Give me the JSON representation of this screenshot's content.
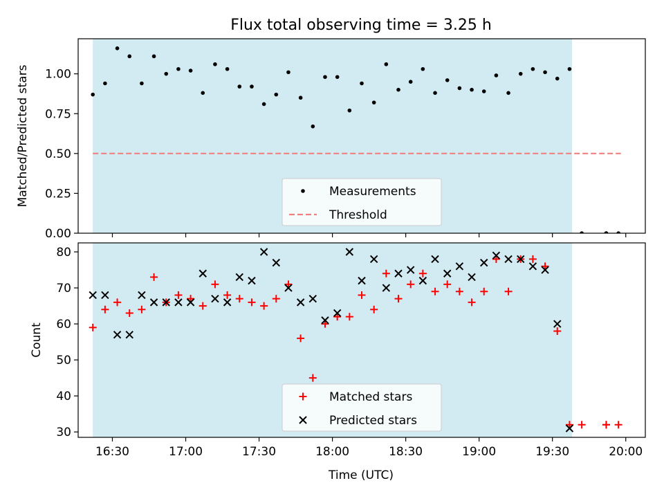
{
  "chart_data": [
    {
      "type": "scatter",
      "title": "Flux total observing time = 3.25 h",
      "xlabel": "",
      "ylabel": "Matched/Predicted stars",
      "ylim": [
        0,
        1.22
      ],
      "xlim": [
        "16:16",
        "20:08"
      ],
      "yticks": [
        "0.00",
        "0.25",
        "0.50",
        "0.75",
        "1.00"
      ],
      "yticks_values": [
        0,
        0.25,
        0.5,
        0.75,
        1.0
      ],
      "legend_position": "lower-center",
      "observing_window": {
        "start": "16:22",
        "end": "19:38",
        "color": "#add8e6"
      },
      "threshold": {
        "name": "Threshold",
        "value": 0.5,
        "x_start": "16:22",
        "x_end": "19:58",
        "color": "#f08080"
      },
      "series": [
        {
          "name": "Measurements",
          "color": "#000000",
          "points": [
            [
              "16:22",
              0.87
            ],
            [
              "16:27",
              0.94
            ],
            [
              "16:32",
              1.16
            ],
            [
              "16:37",
              1.11
            ],
            [
              "16:42",
              0.94
            ],
            [
              "16:47",
              1.11
            ],
            [
              "16:52",
              1.0
            ],
            [
              "16:57",
              1.03
            ],
            [
              "17:02",
              1.02
            ],
            [
              "17:07",
              0.88
            ],
            [
              "17:12",
              1.06
            ],
            [
              "17:17",
              1.03
            ],
            [
              "17:22",
              0.92
            ],
            [
              "17:27",
              0.92
            ],
            [
              "17:32",
              0.81
            ],
            [
              "17:37",
              0.87
            ],
            [
              "17:42",
              1.01
            ],
            [
              "17:47",
              0.85
            ],
            [
              "17:52",
              0.67
            ],
            [
              "17:57",
              0.98
            ],
            [
              "18:02",
              0.98
            ],
            [
              "18:07",
              0.77
            ],
            [
              "18:12",
              0.94
            ],
            [
              "18:17",
              0.82
            ],
            [
              "18:22",
              1.06
            ],
            [
              "18:27",
              0.9
            ],
            [
              "18:32",
              0.95
            ],
            [
              "18:37",
              1.03
            ],
            [
              "18:42",
              0.88
            ],
            [
              "18:47",
              0.96
            ],
            [
              "18:52",
              0.91
            ],
            [
              "18:57",
              0.9
            ],
            [
              "19:02",
              0.89
            ],
            [
              "19:07",
              0.99
            ],
            [
              "19:12",
              0.88
            ],
            [
              "19:17",
              1.0
            ],
            [
              "19:22",
              1.03
            ],
            [
              "19:27",
              1.01
            ],
            [
              "19:32",
              0.97
            ],
            [
              "19:37",
              1.03
            ],
            [
              "19:42",
              0.0
            ],
            [
              "19:52",
              0.0
            ],
            [
              "19:52",
              0.0
            ],
            [
              "19:57",
              0.0
            ]
          ]
        }
      ]
    },
    {
      "type": "scatter",
      "title": "",
      "xlabel": "Time (UTC)",
      "ylabel": "Count",
      "ylim": [
        28.5,
        82.5
      ],
      "xlim": [
        "16:16",
        "20:08"
      ],
      "yticks": [
        "30",
        "40",
        "50",
        "60",
        "70",
        "80"
      ],
      "yticks_values": [
        30,
        40,
        50,
        60,
        70,
        80
      ],
      "xticks": [
        "16:30",
        "17:00",
        "17:30",
        "18:00",
        "18:30",
        "19:00",
        "19:30",
        "20:00"
      ],
      "legend_position": "lower-center",
      "observing_window": {
        "start": "16:22",
        "end": "19:38",
        "color": "#add8e6"
      },
      "series": [
        {
          "name": "Matched stars",
          "color": "#ff0000",
          "marker": "plus",
          "points": [
            [
              "16:22",
              59
            ],
            [
              "16:27",
              64
            ],
            [
              "16:32",
              66
            ],
            [
              "16:37",
              63
            ],
            [
              "16:42",
              64
            ],
            [
              "16:47",
              73
            ],
            [
              "16:52",
              66
            ],
            [
              "16:57",
              68
            ],
            [
              "17:02",
              67
            ],
            [
              "17:07",
              65
            ],
            [
              "17:12",
              71
            ],
            [
              "17:17",
              68
            ],
            [
              "17:22",
              67
            ],
            [
              "17:27",
              66
            ],
            [
              "17:32",
              65
            ],
            [
              "17:37",
              67
            ],
            [
              "17:42",
              71
            ],
            [
              "17:47",
              56
            ],
            [
              "17:52",
              45
            ],
            [
              "17:57",
              60
            ],
            [
              "18:02",
              62
            ],
            [
              "18:07",
              62
            ],
            [
              "18:12",
              68
            ],
            [
              "18:17",
              64
            ],
            [
              "18:22",
              74
            ],
            [
              "18:27",
              67
            ],
            [
              "18:32",
              71
            ],
            [
              "18:37",
              74
            ],
            [
              "18:42",
              69
            ],
            [
              "18:47",
              71
            ],
            [
              "18:52",
              69
            ],
            [
              "18:57",
              66
            ],
            [
              "19:02",
              69
            ],
            [
              "19:07",
              78
            ],
            [
              "19:12",
              69
            ],
            [
              "19:17",
              78
            ],
            [
              "19:22",
              78
            ],
            [
              "19:27",
              76
            ],
            [
              "19:32",
              58
            ],
            [
              "19:37",
              32
            ],
            [
              "19:42",
              32
            ],
            [
              "19:52",
              32
            ],
            [
              "19:52",
              32
            ],
            [
              "19:57",
              32
            ]
          ]
        },
        {
          "name": "Predicted stars",
          "color": "#000000",
          "marker": "x",
          "points": [
            [
              "16:22",
              68
            ],
            [
              "16:27",
              68
            ],
            [
              "16:32",
              57
            ],
            [
              "16:37",
              57
            ],
            [
              "16:42",
              68
            ],
            [
              "16:47",
              66
            ],
            [
              "16:52",
              66
            ],
            [
              "16:57",
              66
            ],
            [
              "17:02",
              66
            ],
            [
              "17:07",
              74
            ],
            [
              "17:12",
              67
            ],
            [
              "17:17",
              66
            ],
            [
              "17:22",
              73
            ],
            [
              "17:27",
              72
            ],
            [
              "17:32",
              80
            ],
            [
              "17:37",
              77
            ],
            [
              "17:42",
              70
            ],
            [
              "17:47",
              66
            ],
            [
              "17:52",
              67
            ],
            [
              "17:57",
              61
            ],
            [
              "18:02",
              63
            ],
            [
              "18:07",
              80
            ],
            [
              "18:12",
              72
            ],
            [
              "18:17",
              78
            ],
            [
              "18:22",
              70
            ],
            [
              "18:27",
              74
            ],
            [
              "18:32",
              75
            ],
            [
              "18:37",
              72
            ],
            [
              "18:42",
              78
            ],
            [
              "18:47",
              74
            ],
            [
              "18:52",
              76
            ],
            [
              "18:57",
              73
            ],
            [
              "19:02",
              77
            ],
            [
              "19:07",
              79
            ],
            [
              "19:12",
              78
            ],
            [
              "19:17",
              78
            ],
            [
              "19:22",
              76
            ],
            [
              "19:27",
              75
            ],
            [
              "19:32",
              60
            ],
            [
              "19:37",
              31
            ]
          ]
        }
      ]
    }
  ]
}
